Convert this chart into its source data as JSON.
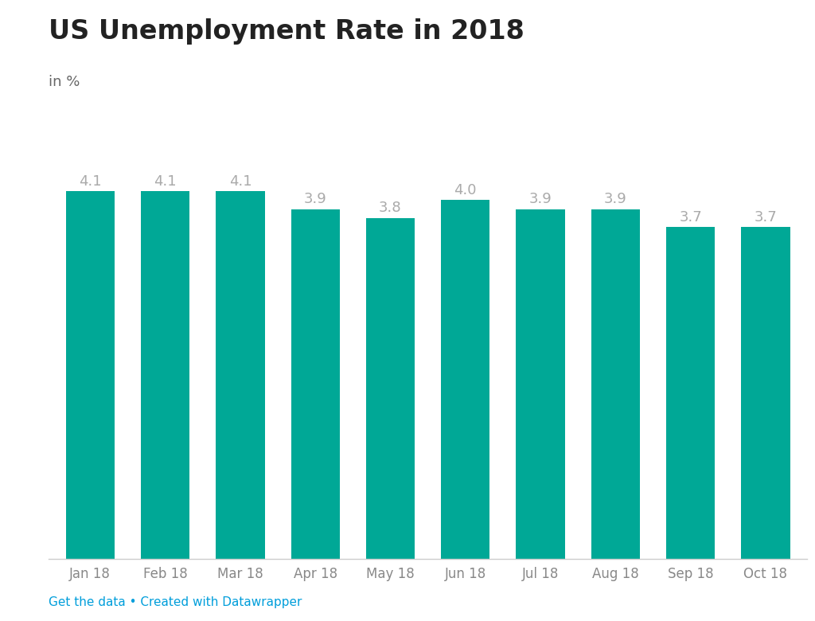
{
  "title": "US Unemployment Rate in 2018",
  "subtitle": "in %",
  "categories": [
    "Jan 18",
    "Feb 18",
    "Mar 18",
    "Apr 18",
    "May 18",
    "Jun 18",
    "Jul 18",
    "Aug 18",
    "Sep 18",
    "Oct 18"
  ],
  "values": [
    4.1,
    4.1,
    4.1,
    3.9,
    3.8,
    4.0,
    3.9,
    3.9,
    3.7,
    3.7
  ],
  "bar_color": "#00a896",
  "label_color": "#aaaaaa",
  "background_color": "#ffffff",
  "title_color": "#222222",
  "subtitle_color": "#666666",
  "footer_text": "Get the data • Created with Datawrapper",
  "footer_color": "#009edb",
  "ylim": [
    0,
    4.5
  ],
  "title_fontsize": 24,
  "subtitle_fontsize": 13,
  "label_fontsize": 13,
  "tick_fontsize": 12,
  "footer_fontsize": 11,
  "bar_width": 0.65
}
